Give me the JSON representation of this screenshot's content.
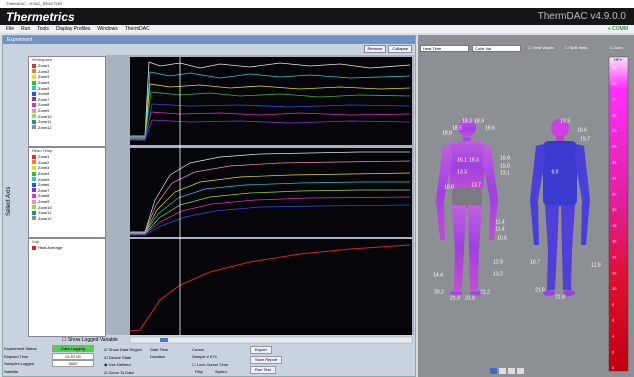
{
  "window_title": "ThermDAC - HVAC_REACTOR",
  "header": {
    "brand": "Thermetrics",
    "version": "ThermDAC v4.9.0.0",
    "comm": "COMM"
  },
  "menu": [
    "File",
    "Run",
    "Tools",
    "Display Profiles",
    "Windows",
    "ThermDAC"
  ],
  "experiment": {
    "title": "Experiment",
    "buttons": [
      "Remove",
      "Collapse"
    ],
    "axis_selector": "Select Axis",
    "panels": [
      {
        "title": "Workspace",
        "items": [
          {
            "name": "Zone1",
            "color": "#e03030"
          },
          {
            "name": "Zone2",
            "color": "#f08020"
          },
          {
            "name": "Zone3",
            "color": "#e0e020"
          },
          {
            "name": "Zone4",
            "color": "#30c030"
          },
          {
            "name": "Zone5",
            "color": "#20d0d0"
          },
          {
            "name": "Zone6",
            "color": "#3050e0"
          },
          {
            "name": "Zone7",
            "color": "#9030d0"
          },
          {
            "name": "Zone8",
            "color": "#e030c0"
          },
          {
            "name": "Zone9",
            "color": "#f090b0"
          },
          {
            "name": "Zone10",
            "color": "#90e040"
          },
          {
            "name": "Zone11",
            "color": "#209090"
          },
          {
            "name": "Zone12",
            "color": "#909090"
          }
        ]
      },
      {
        "title": "Head Temp",
        "items": [
          {
            "name": "Zone1",
            "color": "#e03030"
          },
          {
            "name": "Zone2",
            "color": "#f08020"
          },
          {
            "name": "Zone3",
            "color": "#e0e020"
          },
          {
            "name": "Zone4",
            "color": "#30c030"
          },
          {
            "name": "Zone5",
            "color": "#20d0d0"
          },
          {
            "name": "Zone6",
            "color": "#3050e0"
          },
          {
            "name": "Zone7",
            "color": "#9030d0"
          },
          {
            "name": "Zone8",
            "color": "#e030c0"
          },
          {
            "name": "Zone9",
            "color": "#f090b0"
          },
          {
            "name": "Zone10",
            "color": "#90e040"
          },
          {
            "name": "Zone11",
            "color": "#209090"
          },
          {
            "name": "Zone12",
            "color": "#909090"
          }
        ]
      },
      {
        "title": "Cap",
        "items": [
          {
            "name": "Heat Average",
            "color": "#e02020"
          }
        ]
      }
    ],
    "show_logged": "Show Logged Variable"
  },
  "status": {
    "fields": [
      {
        "label": "Experiment Status",
        "value": "Data Logging"
      },
      {
        "label": "Elapsed Time",
        "value": "01:07:00"
      },
      {
        "label": "Samples Logged",
        "value": "4020"
      },
      {
        "label": "Satellite"
      }
    ]
  },
  "playback": {
    "options": [
      "Show Data Region",
      "Device State",
      "Use Defined",
      "Zoom To Data"
    ],
    "start_time": "Start Time",
    "duration": "Duration",
    "cursor": "Cursor",
    "sample": "Sample # 674",
    "lock": "Lock Cursor Time",
    "play": "Play",
    "speed": "Speed",
    "buttons": [
      "Export",
      "Save Report",
      "Run Test"
    ]
  },
  "manikin": {
    "toolbar": [
      "Heat Time",
      "Color Val",
      "Heat Values",
      "Split View",
      "Auto"
    ],
    "front_labels": [
      "18.3",
      "18.9",
      "18.5",
      "18.6",
      "18.8",
      "16.1",
      "18.3",
      "16.9",
      "15.0",
      "13.1",
      "13.3",
      "13.7",
      "10.8",
      "11.4",
      "11.4",
      "10.6",
      "14.4",
      "12.9",
      "13.2",
      "20.2",
      "21.3",
      "21.8",
      "21.2"
    ],
    "back_labels": [
      "19.3",
      "19.6",
      "19.7",
      "9.0",
      "10.7",
      "11.9",
      "21.6",
      "21.8"
    ],
    "scale_title": "HFX",
    "scale_labels": [
      "38",
      "36",
      "34",
      "32",
      "30",
      "28",
      "26",
      "24",
      "22",
      "20",
      "18",
      "16",
      "14",
      "12",
      "10",
      "8",
      "6",
      "4",
      "2",
      "0"
    ]
  }
}
